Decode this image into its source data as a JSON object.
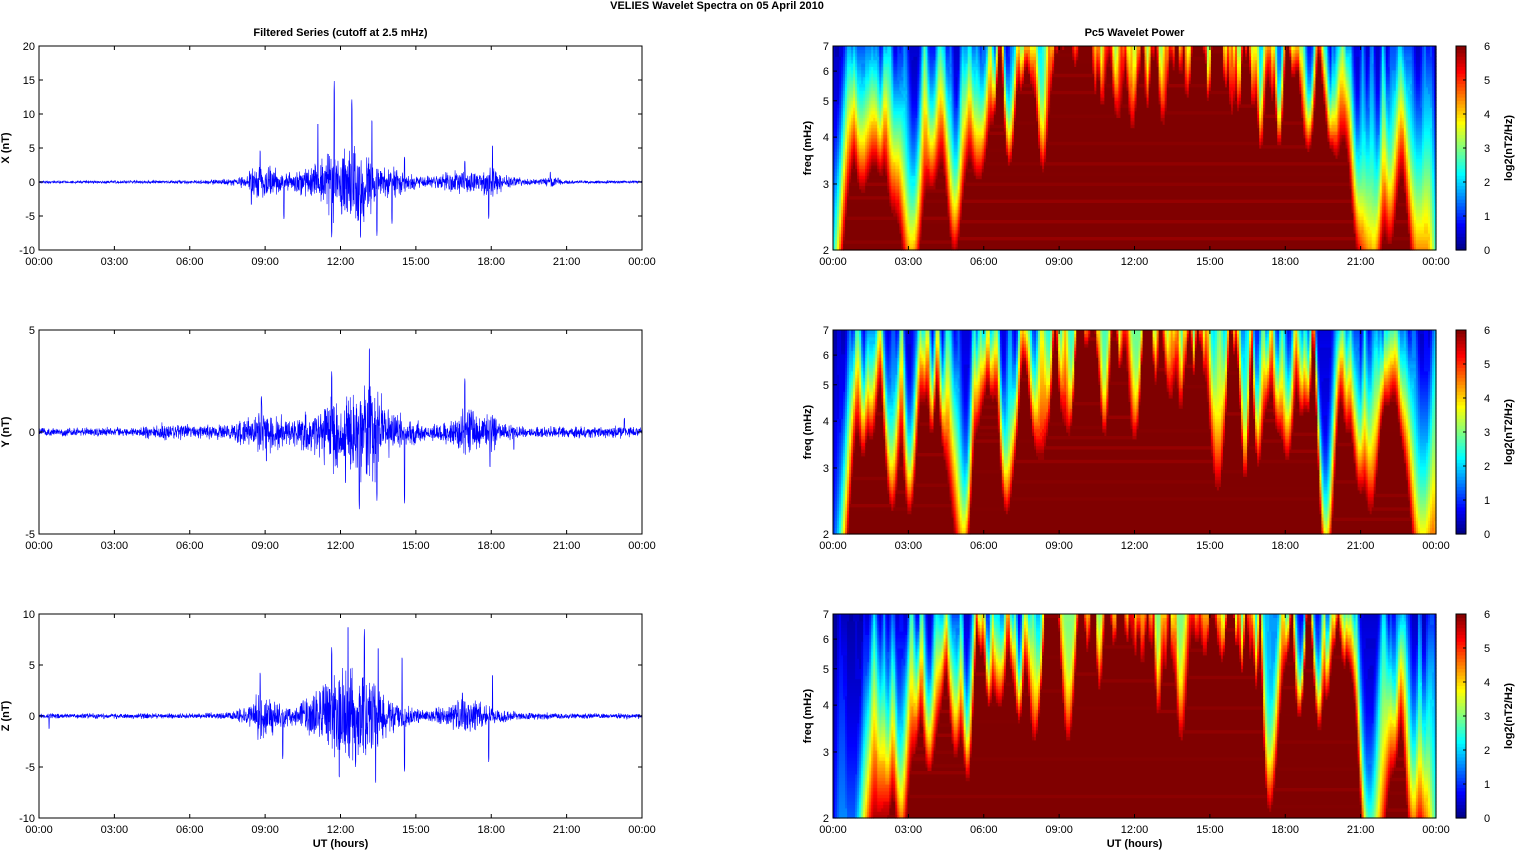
{
  "figure_title": "VELIES Wavelet Spectra on 05 April      2010",
  "time_ticks": [
    "00:00",
    "03:00",
    "06:00",
    "09:00",
    "12:00",
    "15:00",
    "18:00",
    "21:00",
    "00:00"
  ],
  "colors": {
    "trace": "#0000ff",
    "axis": "#000000",
    "background": "#ffffff"
  },
  "chart_data": [
    {
      "type": "line",
      "title": "Filtered Series (cutoff at 2.5 mHz)",
      "ylabel": "X (nT)",
      "xlabel": "",
      "xlim": [
        0,
        24
      ],
      "ylim": [
        -10,
        20
      ],
      "yticks": [
        -10,
        -5,
        0,
        5,
        10,
        15,
        20
      ],
      "envelope": [
        [
          0,
          0.25
        ],
        [
          2,
          0.25
        ],
        [
          4,
          0.3
        ],
        [
          6,
          0.3
        ],
        [
          7.5,
          0.5
        ],
        [
          8.3,
          1.2
        ],
        [
          8.5,
          2.5
        ],
        [
          9,
          3
        ],
        [
          9.5,
          2
        ],
        [
          10,
          1.5
        ],
        [
          10.8,
          3
        ],
        [
          11.3,
          4
        ],
        [
          11.7,
          7
        ],
        [
          12,
          5
        ],
        [
          12.3,
          6
        ],
        [
          12.7,
          7
        ],
        [
          13.1,
          6.5
        ],
        [
          13.5,
          3
        ],
        [
          14,
          3
        ],
        [
          14.6,
          1.5
        ],
        [
          15.5,
          1
        ],
        [
          16.5,
          2
        ],
        [
          17,
          2.2
        ],
        [
          17.5,
          1.5
        ],
        [
          18,
          3.5
        ],
        [
          18.5,
          1.2
        ],
        [
          19.5,
          0.5
        ],
        [
          20.3,
          0.7
        ],
        [
          20.5,
          0.9
        ],
        [
          21,
          0.3
        ],
        [
          24,
          0.25
        ]
      ],
      "peaks": [
        [
          8.45,
          -3.5
        ],
        [
          8.8,
          4.8
        ],
        [
          9.75,
          -5.6
        ],
        [
          11.1,
          9
        ],
        [
          11.65,
          -8.2
        ],
        [
          11.75,
          15
        ],
        [
          12.05,
          -5
        ],
        [
          12.45,
          12.5
        ],
        [
          12.8,
          -8.5
        ],
        [
          13.25,
          9.5
        ],
        [
          13.45,
          -8
        ],
        [
          14.05,
          -6.2
        ],
        [
          14.55,
          3.8
        ],
        [
          16.95,
          3.2
        ],
        [
          17.9,
          -5.5
        ],
        [
          18.05,
          5.6
        ],
        [
          20.35,
          1.5
        ]
      ]
    },
    {
      "type": "line",
      "title": "",
      "ylabel": "Y (nT)",
      "xlabel": "",
      "xlim": [
        0,
        24
      ],
      "ylim": [
        -5,
        5
      ],
      "yticks": [
        -5,
        0,
        5
      ],
      "envelope": [
        [
          0,
          0.2
        ],
        [
          2,
          0.25
        ],
        [
          4,
          0.3
        ],
        [
          4.8,
          0.5
        ],
        [
          5.5,
          0.5
        ],
        [
          6.5,
          0.4
        ],
        [
          7.5,
          0.5
        ],
        [
          8.5,
          1
        ],
        [
          9,
          1.4
        ],
        [
          9.5,
          1
        ],
        [
          10,
          0.7
        ],
        [
          11,
          1.3
        ],
        [
          11.8,
          2.6
        ],
        [
          12,
          1.7
        ],
        [
          12.5,
          2.3
        ],
        [
          13,
          3.2
        ],
        [
          13.4,
          2.6
        ],
        [
          13.8,
          1.5
        ],
        [
          14.5,
          1
        ],
        [
          15.3,
          0.5
        ],
        [
          16,
          0.5
        ],
        [
          16.5,
          0.8
        ],
        [
          17,
          1.3
        ],
        [
          17.7,
          1.1
        ],
        [
          18,
          1.2
        ],
        [
          18.5,
          0.5
        ],
        [
          19.5,
          0.3
        ],
        [
          23,
          0.35
        ],
        [
          24,
          0.25
        ]
      ],
      "peaks": [
        [
          8.85,
          1.8
        ],
        [
          9.05,
          -1.5
        ],
        [
          11.65,
          3
        ],
        [
          12.2,
          -2.6
        ],
        [
          12.75,
          -3.9
        ],
        [
          13.15,
          4.3
        ],
        [
          13.45,
          -3.4
        ],
        [
          14.55,
          -3.6
        ],
        [
          16.95,
          2.7
        ],
        [
          17.95,
          -1.8
        ],
        [
          18.9,
          -0.9
        ],
        [
          23.3,
          0.7
        ]
      ]
    },
    {
      "type": "line",
      "title": "",
      "ylabel": "Z (nT)",
      "xlabel": "UT (hours)",
      "xlim": [
        0,
        24
      ],
      "ylim": [
        -10,
        10
      ],
      "yticks": [
        -10,
        -5,
        0,
        5,
        10
      ],
      "envelope": [
        [
          0,
          0.3
        ],
        [
          2,
          0.3
        ],
        [
          4,
          0.3
        ],
        [
          6,
          0.3
        ],
        [
          7.5,
          0.4
        ],
        [
          8.3,
          1
        ],
        [
          8.7,
          2.5
        ],
        [
          9,
          3
        ],
        [
          9.5,
          1.8
        ],
        [
          10,
          1
        ],
        [
          10.8,
          2.5
        ],
        [
          11.4,
          4
        ],
        [
          11.8,
          6
        ],
        [
          12.2,
          5
        ],
        [
          12.6,
          5.5
        ],
        [
          13,
          5
        ],
        [
          13.5,
          3.5
        ],
        [
          14,
          2
        ],
        [
          14.5,
          1.5
        ],
        [
          15.2,
          0.6
        ],
        [
          16,
          1
        ],
        [
          16.5,
          1.5
        ],
        [
          17,
          2.4
        ],
        [
          17.6,
          1.5
        ],
        [
          18,
          1
        ],
        [
          19,
          0.5
        ],
        [
          21,
          0.3
        ],
        [
          24,
          0.3
        ]
      ],
      "peaks": [
        [
          0.4,
          -1.3
        ],
        [
          8.8,
          4.4
        ],
        [
          9.7,
          -4.3
        ],
        [
          11.65,
          6.8
        ],
        [
          11.95,
          -6.3
        ],
        [
          12.3,
          9.2
        ],
        [
          12.6,
          -5
        ],
        [
          12.95,
          8.6
        ],
        [
          13.4,
          -6.8
        ],
        [
          13.5,
          7
        ],
        [
          14.45,
          6
        ],
        [
          14.55,
          -5.6
        ],
        [
          16.85,
          2.4
        ],
        [
          17.9,
          -4.6
        ],
        [
          18.05,
          4.2
        ]
      ]
    },
    {
      "type": "heatmap",
      "title": "Pc5 Wavelet Power",
      "ylabel": "freq (mHz)",
      "xlabel": "",
      "xlim": [
        0,
        24
      ],
      "ylim": [
        2,
        7
      ],
      "y_scale": "log",
      "yticks": [
        2,
        3,
        4,
        5,
        6,
        7
      ],
      "colorbar_label": "log2(nT2/Hz)",
      "clim": [
        0,
        6
      ],
      "colorbar_ticks": [
        0,
        1,
        2,
        3,
        4,
        5,
        6
      ],
      "colormap": "jet",
      "activity": [
        [
          0,
          0.2
        ],
        [
          2,
          0.3
        ],
        [
          4,
          0.45
        ],
        [
          5.5,
          0.5
        ],
        [
          7.5,
          0.7
        ],
        [
          8.5,
          1
        ],
        [
          16,
          1
        ],
        [
          18,
          0.85
        ],
        [
          20,
          0.6
        ],
        [
          22.5,
          0.45
        ],
        [
          24,
          0.25
        ]
      ],
      "seed": 11
    },
    {
      "type": "heatmap",
      "title": "",
      "ylabel": "freq (mHz)",
      "xlabel": "",
      "xlim": [
        0,
        24
      ],
      "ylim": [
        2,
        7
      ],
      "y_scale": "log",
      "yticks": [
        2,
        3,
        4,
        5,
        6,
        7
      ],
      "colorbar_label": "log2(nT2/Hz)",
      "clim": [
        0,
        6
      ],
      "colorbar_ticks": [
        0,
        1,
        2,
        3,
        4,
        5,
        6
      ],
      "colormap": "jet",
      "activity": [
        [
          0,
          0.25
        ],
        [
          2,
          0.4
        ],
        [
          4,
          0.55
        ],
        [
          5.5,
          0.6
        ],
        [
          7.5,
          0.7
        ],
        [
          8.5,
          0.95
        ],
        [
          13,
          1
        ],
        [
          16,
          0.9
        ],
        [
          18,
          0.75
        ],
        [
          20,
          0.5
        ],
        [
          23,
          0.45
        ],
        [
          24,
          0.3
        ]
      ],
      "seed": 23
    },
    {
      "type": "heatmap",
      "title": "",
      "ylabel": "freq (mHz)",
      "xlabel": "UT (hours)",
      "xlim": [
        0,
        24
      ],
      "ylim": [
        2,
        7
      ],
      "y_scale": "log",
      "yticks": [
        2,
        3,
        4,
        5,
        6,
        7
      ],
      "colorbar_label": "log2(nT2/Hz)",
      "clim": [
        0,
        6
      ],
      "colorbar_ticks": [
        0,
        1,
        2,
        3,
        4,
        5,
        6
      ],
      "colormap": "jet",
      "activity": [
        [
          0,
          0.2
        ],
        [
          2,
          0.3
        ],
        [
          4,
          0.45
        ],
        [
          5.5,
          0.55
        ],
        [
          7.5,
          0.7
        ],
        [
          8.5,
          1
        ],
        [
          16,
          1
        ],
        [
          18,
          0.85
        ],
        [
          20,
          0.6
        ],
        [
          22.5,
          0.4
        ],
        [
          24,
          0.25
        ]
      ],
      "seed": 37
    }
  ]
}
